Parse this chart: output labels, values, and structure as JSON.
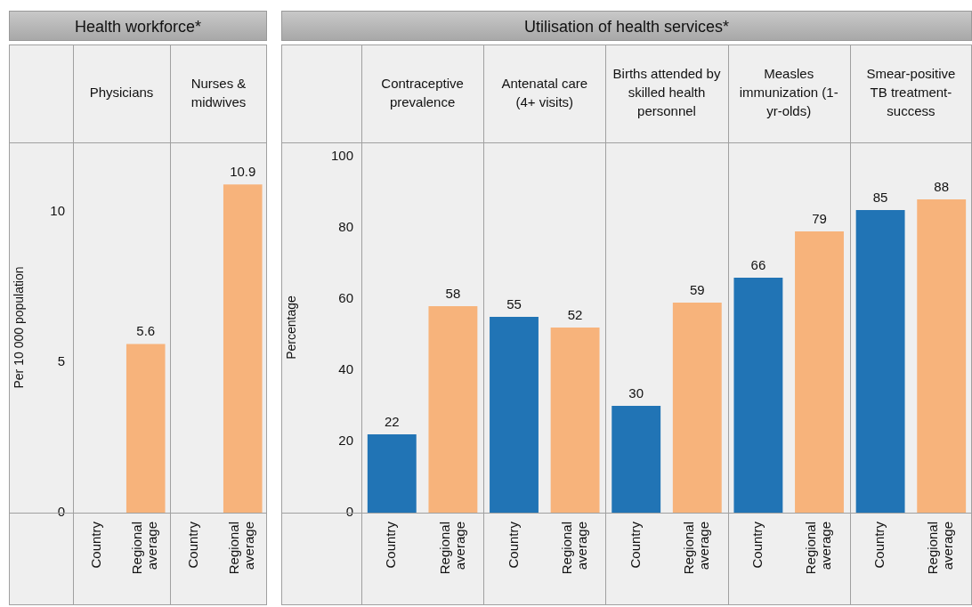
{
  "chart_data": [
    {
      "type": "bar",
      "title": "Health workforce*",
      "ylabel": "Per 10 000 population",
      "categories": [
        "Physicians",
        "Nurses & midwives"
      ],
      "series": [
        {
          "name": "Country",
          "values": [
            null,
            null
          ]
        },
        {
          "name": "Regional average",
          "color": "#f7b37b",
          "values": [
            5.6,
            10.9
          ]
        }
      ],
      "ylim": [
        0,
        12.3
      ],
      "yticks": [
        0,
        5,
        10
      ],
      "data_labels": true
    },
    {
      "type": "bar",
      "title": "Utilisation of health services*",
      "ylabel": "Percentage",
      "categories": [
        "Contraceptive prevalence",
        "Antenatal care (4+ visits)",
        "Births attended by skilled health personnel",
        "Measles immunization (1-yr-olds)",
        "Smear-positive TB treatment-success"
      ],
      "series": [
        {
          "name": "Country",
          "color": "#2174b5",
          "values": [
            22,
            55,
            30,
            66,
            85
          ]
        },
        {
          "name": "Regional average",
          "color": "#f7b37b",
          "values": [
            58,
            52,
            59,
            79,
            88
          ]
        }
      ],
      "ylim": [
        0,
        104
      ],
      "yticks": [
        0,
        20,
        40,
        60,
        80,
        100
      ],
      "data_labels": true
    }
  ]
}
